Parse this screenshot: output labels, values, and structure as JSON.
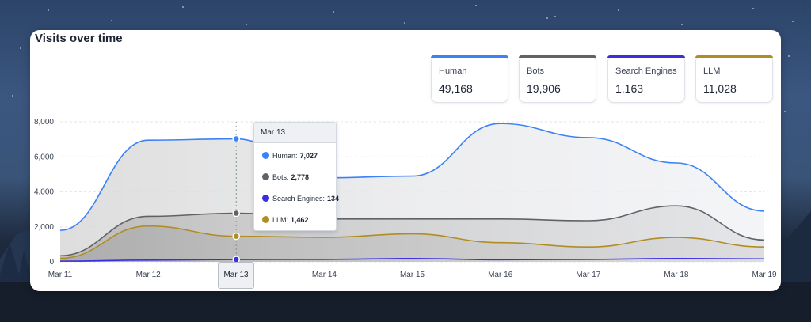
{
  "card": {
    "title": "Visits over time"
  },
  "stats": [
    {
      "label": "Human",
      "value": "49,168",
      "color": "#3b82f6"
    },
    {
      "label": "Bots",
      "value": "19,906",
      "color": "#5f6368"
    },
    {
      "label": "Search Engines",
      "value": "1,163",
      "color": "#3a2fe0"
    },
    {
      "label": "LLM",
      "value": "11,028",
      "color": "#b08d24"
    }
  ],
  "tooltip": {
    "date": "Mar 13",
    "rows": [
      {
        "label": "Human:",
        "value": "7,027",
        "color": "#3b82f6"
      },
      {
        "label": "Bots:",
        "value": "2,778",
        "color": "#5f6368"
      },
      {
        "label": "Search Engines:",
        "value": "134",
        "color": "#3a2fe0"
      },
      {
        "label": "LLM:",
        "value": "1,462",
        "color": "#b08d24"
      }
    ]
  },
  "chart_data": {
    "type": "area",
    "title": "Visits over time",
    "x": [
      "Mar 11",
      "Mar 12",
      "Mar 13",
      "Mar 14",
      "Mar 15",
      "Mar 16",
      "Mar 17",
      "Mar 18",
      "Mar 19"
    ],
    "ylim": [
      0,
      8000
    ],
    "yticks": [
      "0",
      "2,000",
      "4,000",
      "6,000",
      "8,000"
    ],
    "highlighted_x": "Mar 13",
    "grid": true,
    "series": [
      {
        "name": "Human",
        "color": "#3b82f6",
        "values": [
          1800,
          6950,
          7027,
          4800,
          4900,
          7900,
          7100,
          5650,
          2900
        ]
      },
      {
        "name": "Bots",
        "color": "#5f6368",
        "values": [
          350,
          2600,
          2778,
          2450,
          2450,
          2450,
          2350,
          3200,
          1250
        ]
      },
      {
        "name": "Search Engines",
        "color": "#3a2fe0",
        "values": [
          40,
          100,
          134,
          140,
          190,
          120,
          140,
          190,
          170
        ]
      },
      {
        "name": "LLM",
        "color": "#b08d24",
        "values": [
          200,
          2050,
          1462,
          1400,
          1600,
          1100,
          850,
          1400,
          850
        ]
      }
    ]
  }
}
